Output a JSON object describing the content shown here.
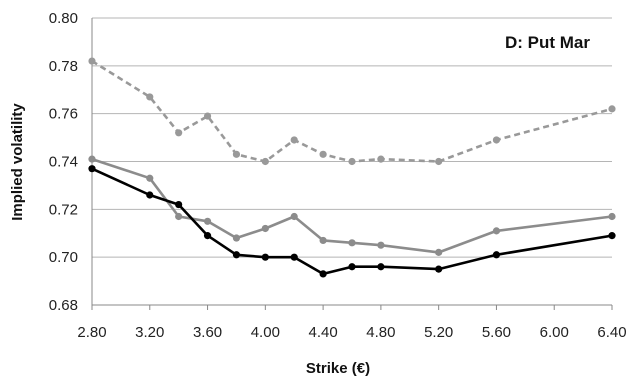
{
  "chart_data": {
    "type": "line",
    "title": "D: Put Mar",
    "xlabel": "Strike (€)",
    "ylabel": "Implied volatility",
    "x_ticks": [
      "2.80",
      "3.20",
      "3.60",
      "4.00",
      "4.40",
      "4.80",
      "5.20",
      "5.60",
      "6.00",
      "6.40"
    ],
    "y_ticks": [
      "0.68",
      "0.70",
      "0.72",
      "0.74",
      "0.76",
      "0.78",
      "0.80"
    ],
    "xlim": [
      2.8,
      6.4
    ],
    "ylim": [
      0.68,
      0.8
    ],
    "grid": "horizontal",
    "legend": "none",
    "series": [
      {
        "style": "dashed",
        "color": "#999999",
        "x": [
          2.8,
          3.2,
          3.4,
          3.6,
          3.8,
          4.0,
          4.2,
          4.4,
          4.6,
          4.8,
          5.2,
          5.6,
          6.4
        ],
        "y": [
          0.782,
          0.767,
          0.752,
          0.759,
          0.743,
          0.74,
          0.749,
          0.743,
          0.74,
          0.741,
          0.74,
          0.749,
          0.762
        ]
      },
      {
        "style": "solid",
        "color": "#8c8c8c",
        "x": [
          2.8,
          3.2,
          3.4,
          3.6,
          3.8,
          4.0,
          4.2,
          4.4,
          4.6,
          4.8,
          5.2,
          5.6,
          6.4
        ],
        "y": [
          0.741,
          0.733,
          0.717,
          0.715,
          0.708,
          0.712,
          0.717,
          0.707,
          0.706,
          0.705,
          0.702,
          0.711,
          0.717
        ]
      },
      {
        "style": "solid",
        "color": "#000000",
        "x": [
          2.8,
          3.2,
          3.4,
          3.6,
          3.8,
          4.0,
          4.2,
          4.4,
          4.6,
          4.8,
          5.2,
          5.6,
          6.4
        ],
        "y": [
          0.737,
          0.726,
          0.722,
          0.709,
          0.701,
          0.7,
          0.7,
          0.693,
          0.696,
          0.696,
          0.695,
          0.701,
          0.709
        ]
      }
    ]
  }
}
